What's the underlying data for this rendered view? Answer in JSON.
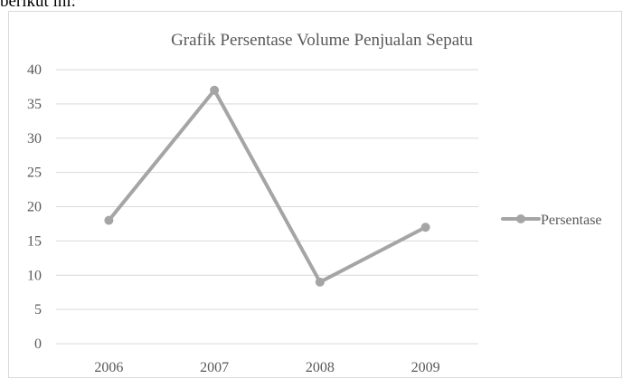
{
  "header_text": "berikut ini:",
  "chart_data": {
    "type": "line",
    "title": "Grafik  Persentase Volume Penjualan Sepatu",
    "categories": [
      "2006",
      "2007",
      "2008",
      "2009"
    ],
    "series": [
      {
        "name": "Persentase",
        "values": [
          18,
          37,
          9,
          17
        ]
      }
    ],
    "yticks": [
      "0",
      "5",
      "10",
      "15",
      "20",
      "25",
      "30",
      "35",
      "40"
    ],
    "ylim": [
      0,
      40
    ],
    "xlabel": "",
    "ylabel": "",
    "grid": true,
    "legend": "right",
    "colors": {
      "line": "#a5a5a5",
      "grid": "#d9d9d9",
      "text": "#595959"
    }
  }
}
